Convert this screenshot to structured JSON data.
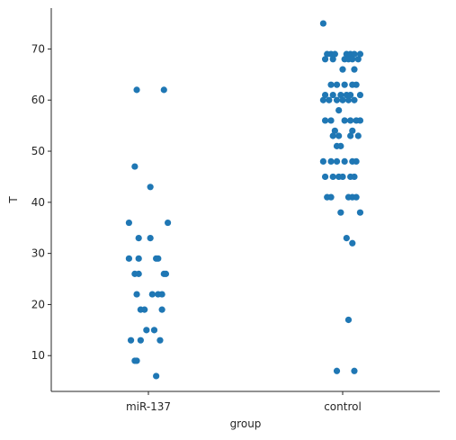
{
  "chart_data": {
    "type": "scatter",
    "subtype": "strip",
    "xlabel": "group",
    "ylabel": "T",
    "categories": [
      "miR-137",
      "control"
    ],
    "ylim": [
      3,
      78
    ],
    "yticks": [
      10,
      20,
      30,
      40,
      50,
      60,
      70
    ],
    "grid": false,
    "color": "#1f77b4",
    "series": [
      {
        "category": "miR-137",
        "points": [
          {
            "x": -0.06,
            "y": 62
          },
          {
            "x": 0.08,
            "y": 62
          },
          {
            "x": -0.07,
            "y": 47
          },
          {
            "x": 0.01,
            "y": 43
          },
          {
            "x": -0.1,
            "y": 36
          },
          {
            "x": 0.1,
            "y": 36
          },
          {
            "x": -0.05,
            "y": 33
          },
          {
            "x": 0.01,
            "y": 33
          },
          {
            "x": -0.1,
            "y": 29
          },
          {
            "x": -0.05,
            "y": 29
          },
          {
            "x": 0.04,
            "y": 29
          },
          {
            "x": 0.05,
            "y": 29
          },
          {
            "x": -0.07,
            "y": 26
          },
          {
            "x": -0.05,
            "y": 26
          },
          {
            "x": 0.08,
            "y": 26
          },
          {
            "x": 0.09,
            "y": 26
          },
          {
            "x": -0.06,
            "y": 22
          },
          {
            "x": 0.02,
            "y": 22
          },
          {
            "x": 0.05,
            "y": 22
          },
          {
            "x": 0.07,
            "y": 22
          },
          {
            "x": -0.04,
            "y": 19
          },
          {
            "x": -0.02,
            "y": 19
          },
          {
            "x": 0.07,
            "y": 19
          },
          {
            "x": -0.01,
            "y": 15
          },
          {
            "x": 0.03,
            "y": 15
          },
          {
            "x": -0.09,
            "y": 13
          },
          {
            "x": -0.04,
            "y": 13
          },
          {
            "x": 0.06,
            "y": 13
          },
          {
            "x": -0.07,
            "y": 9
          },
          {
            "x": -0.06,
            "y": 9
          },
          {
            "x": 0.04,
            "y": 6
          }
        ]
      },
      {
        "category": "control",
        "points": [
          {
            "x": -0.1,
            "y": 75
          },
          {
            "x": -0.08,
            "y": 69
          },
          {
            "x": -0.06,
            "y": 69
          },
          {
            "x": -0.04,
            "y": 69
          },
          {
            "x": 0.02,
            "y": 69
          },
          {
            "x": 0.04,
            "y": 69
          },
          {
            "x": 0.06,
            "y": 69
          },
          {
            "x": 0.09,
            "y": 69
          },
          {
            "x": -0.09,
            "y": 68
          },
          {
            "x": -0.05,
            "y": 68
          },
          {
            "x": 0.01,
            "y": 68
          },
          {
            "x": 0.03,
            "y": 68
          },
          {
            "x": 0.05,
            "y": 68
          },
          {
            "x": 0.08,
            "y": 68
          },
          {
            "x": 0.0,
            "y": 66
          },
          {
            "x": 0.06,
            "y": 66
          },
          {
            "x": -0.06,
            "y": 63
          },
          {
            "x": -0.03,
            "y": 63
          },
          {
            "x": 0.01,
            "y": 63
          },
          {
            "x": 0.05,
            "y": 63
          },
          {
            "x": 0.07,
            "y": 63
          },
          {
            "x": -0.09,
            "y": 61
          },
          {
            "x": -0.05,
            "y": 61
          },
          {
            "x": -0.01,
            "y": 61
          },
          {
            "x": 0.02,
            "y": 61
          },
          {
            "x": 0.04,
            "y": 61
          },
          {
            "x": 0.09,
            "y": 61
          },
          {
            "x": -0.1,
            "y": 60
          },
          {
            "x": -0.07,
            "y": 60
          },
          {
            "x": -0.03,
            "y": 60
          },
          {
            "x": 0.0,
            "y": 60
          },
          {
            "x": 0.03,
            "y": 60
          },
          {
            "x": 0.06,
            "y": 60
          },
          {
            "x": -0.02,
            "y": 58
          },
          {
            "x": -0.09,
            "y": 56
          },
          {
            "x": -0.06,
            "y": 56
          },
          {
            "x": 0.01,
            "y": 56
          },
          {
            "x": 0.04,
            "y": 56
          },
          {
            "x": 0.07,
            "y": 56
          },
          {
            "x": 0.09,
            "y": 56
          },
          {
            "x": -0.04,
            "y": 54
          },
          {
            "x": 0.05,
            "y": 54
          },
          {
            "x": -0.05,
            "y": 53
          },
          {
            "x": -0.02,
            "y": 53
          },
          {
            "x": 0.04,
            "y": 53
          },
          {
            "x": 0.08,
            "y": 53
          },
          {
            "x": -0.03,
            "y": 51
          },
          {
            "x": -0.01,
            "y": 51
          },
          {
            "x": -0.1,
            "y": 48
          },
          {
            "x": -0.06,
            "y": 48
          },
          {
            "x": -0.03,
            "y": 48
          },
          {
            "x": 0.01,
            "y": 48
          },
          {
            "x": 0.05,
            "y": 48
          },
          {
            "x": 0.07,
            "y": 48
          },
          {
            "x": -0.09,
            "y": 45
          },
          {
            "x": -0.05,
            "y": 45
          },
          {
            "x": -0.02,
            "y": 45
          },
          {
            "x": 0.0,
            "y": 45
          },
          {
            "x": 0.04,
            "y": 45
          },
          {
            "x": 0.06,
            "y": 45
          },
          {
            "x": -0.08,
            "y": 41
          },
          {
            "x": -0.06,
            "y": 41
          },
          {
            "x": 0.03,
            "y": 41
          },
          {
            "x": 0.05,
            "y": 41
          },
          {
            "x": 0.07,
            "y": 41
          },
          {
            "x": -0.01,
            "y": 38
          },
          {
            "x": 0.09,
            "y": 38
          },
          {
            "x": 0.02,
            "y": 33
          },
          {
            "x": 0.05,
            "y": 32
          },
          {
            "x": 0.03,
            "y": 17
          },
          {
            "x": -0.03,
            "y": 7
          },
          {
            "x": 0.06,
            "y": 7
          }
        ]
      }
    ]
  }
}
